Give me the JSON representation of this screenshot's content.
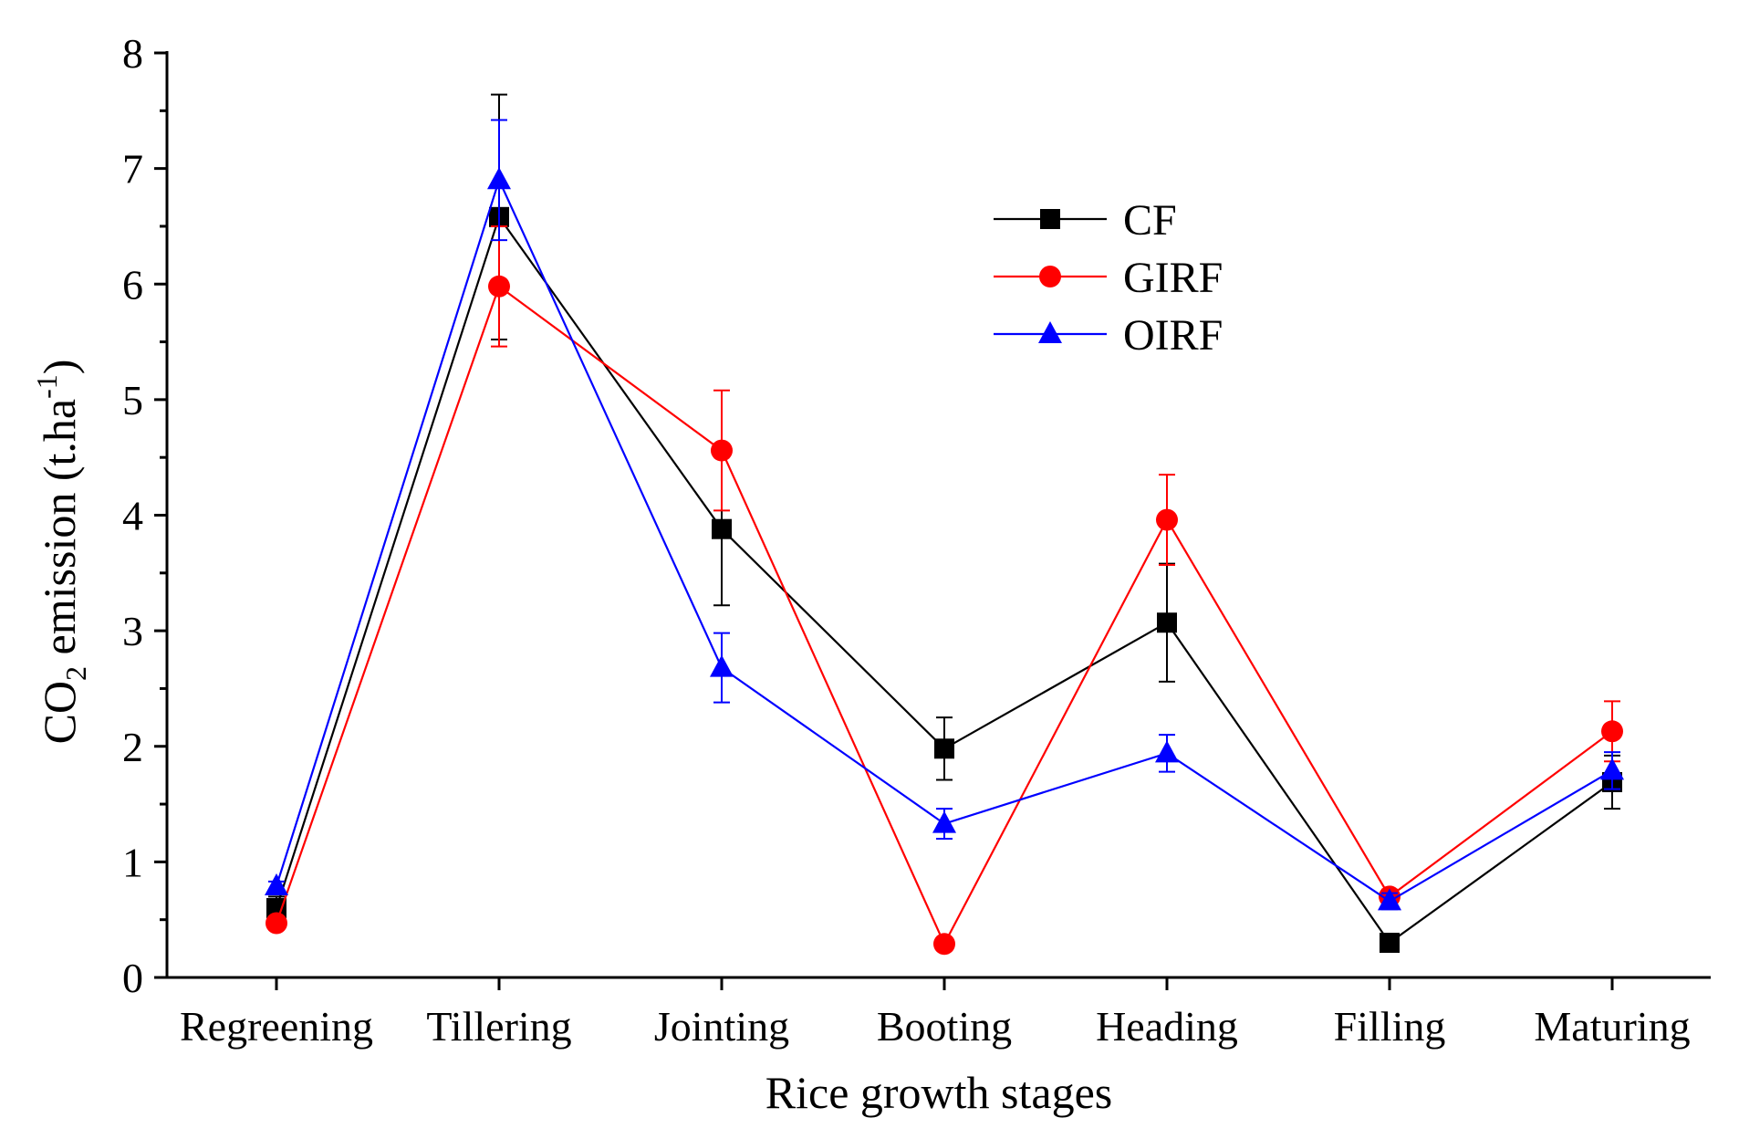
{
  "chart_data": {
    "type": "line",
    "xlabel": "Rice growth stages",
    "ylabel": {
      "main": "CO",
      "subscript": "2",
      "rest": " emission (t.ha",
      "superscript": "-1",
      "close": ")"
    },
    "categories": [
      "Regreening",
      "Tillering",
      "Jointing",
      "Booting",
      "Heading",
      "Filling",
      "Maturing"
    ],
    "ylim": [
      0,
      8
    ],
    "yticks": [
      "0",
      "1",
      "2",
      "3",
      "4",
      "5",
      "6",
      "7",
      "8"
    ],
    "grid": false,
    "legend_position": "top-right",
    "series": [
      {
        "name": "CF",
        "color": "#000000",
        "marker": "square",
        "values": [
          0.6,
          6.58,
          3.88,
          1.98,
          3.07,
          0.3,
          1.69
        ],
        "errors": [
          0.1,
          1.06,
          0.66,
          0.27,
          0.51,
          0.02,
          0.23
        ]
      },
      {
        "name": "GIRF",
        "color": "#ff0000",
        "marker": "circle",
        "values": [
          0.47,
          5.98,
          4.56,
          0.29,
          3.96,
          0.7,
          2.13
        ],
        "errors": [
          0.03,
          0.52,
          0.52,
          0.02,
          0.39,
          0.06,
          0.26
        ]
      },
      {
        "name": "OIRF",
        "color": "#0000ff",
        "marker": "triangle",
        "values": [
          0.79,
          6.9,
          2.68,
          1.33,
          1.94,
          0.66,
          1.79
        ],
        "errors": [
          0.04,
          0.52,
          0.3,
          0.13,
          0.16,
          0.07,
          0.16
        ]
      }
    ]
  }
}
